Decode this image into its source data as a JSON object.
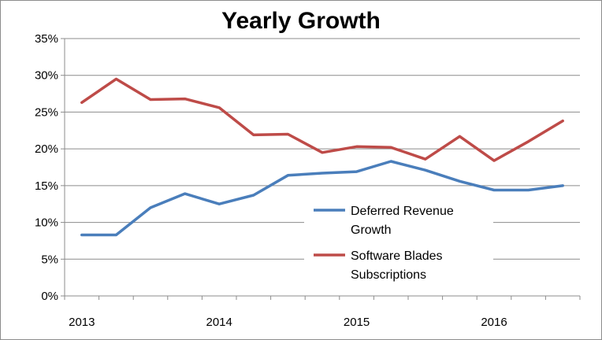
{
  "chart_data": {
    "type": "line",
    "title": "Yearly Growth",
    "xlabel": "",
    "ylabel": "",
    "ylim": [
      0,
      35
    ],
    "y_ticks": [
      "0%",
      "5%",
      "10%",
      "15%",
      "20%",
      "25%",
      "30%",
      "35%"
    ],
    "x_tick_labels": [
      {
        "label": "2013",
        "index": 0
      },
      {
        "label": "2014",
        "index": 4
      },
      {
        "label": "2015",
        "index": 8
      },
      {
        "label": "2016",
        "index": 12
      }
    ],
    "num_points": 15,
    "grid": true,
    "legend_position": "bottom-right inside plot",
    "series": [
      {
        "name": "Deferred Revenue Growth",
        "legend_lines": [
          "Deferred Revenue",
          "Growth"
        ],
        "color": "#4a7ebb",
        "values": [
          8.3,
          8.3,
          12.0,
          13.9,
          12.5,
          13.7,
          16.4,
          16.7,
          16.9,
          18.3,
          17.1,
          15.6,
          14.4,
          14.4,
          15.0
        ]
      },
      {
        "name": "Software Blades Subscriptions",
        "legend_lines": [
          "Software Blades",
          "Subscriptions"
        ],
        "color": "#be4b48",
        "values": [
          26.3,
          29.5,
          26.7,
          26.8,
          25.6,
          21.9,
          22.0,
          19.5,
          20.3,
          20.2,
          18.6,
          21.7,
          18.4,
          21.0,
          23.8
        ]
      }
    ]
  }
}
